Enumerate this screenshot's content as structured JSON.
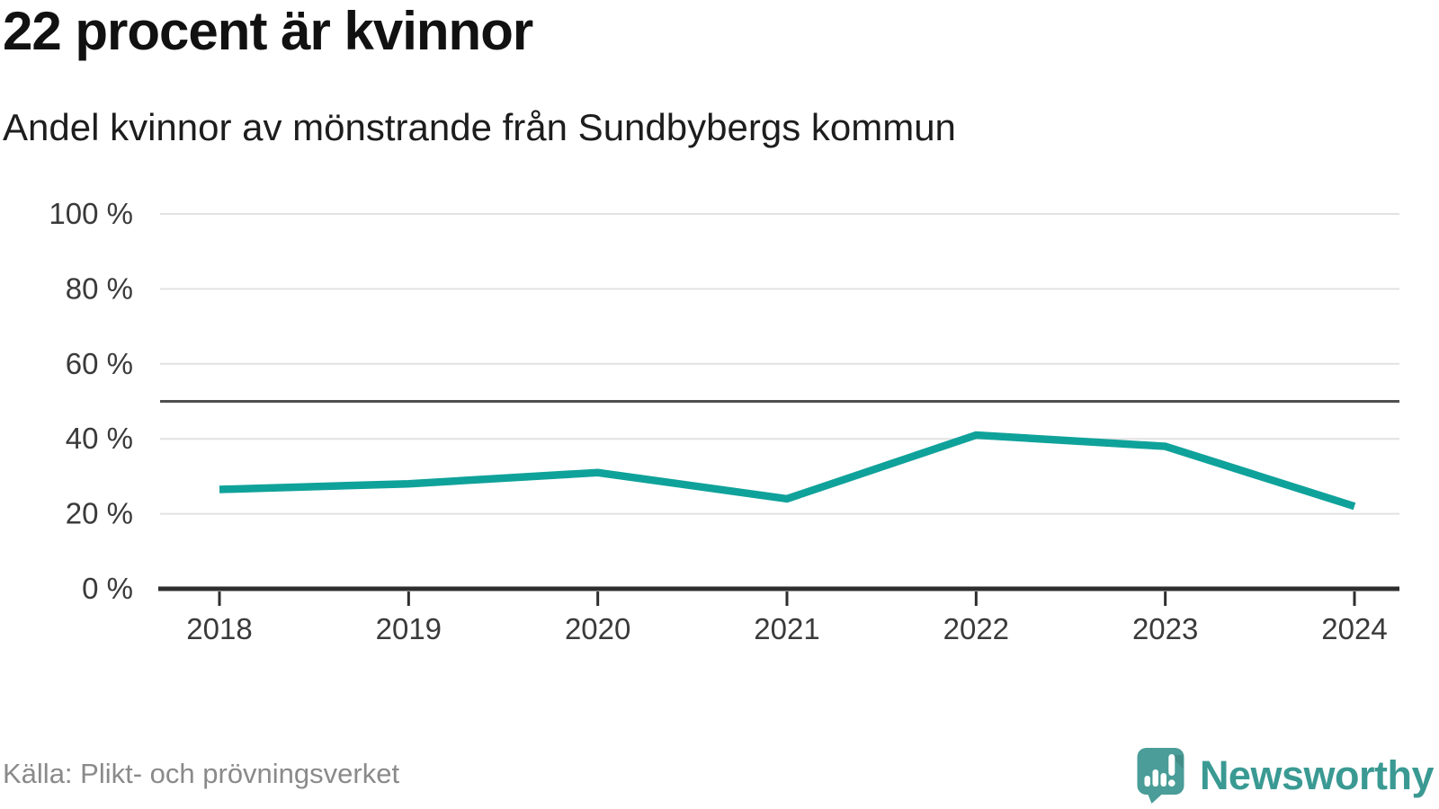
{
  "header": {
    "title": "22 procent är kvinnor",
    "subtitle": "Andel kvinnor av mönstrande från Sundbybergs kommun"
  },
  "chart_data": {
    "type": "line",
    "title": "22 procent är kvinnor",
    "subtitle": "Andel kvinnor av mönstrande från Sundbybergs kommun",
    "categories": [
      "2018",
      "2019",
      "2020",
      "2021",
      "2022",
      "2023",
      "2024"
    ],
    "series": [
      {
        "name": "Andel kvinnor av mönstrande",
        "values": [
          26.5,
          28,
          31,
          24,
          41,
          38,
          22
        ]
      }
    ],
    "unit": "%",
    "ylim": [
      0,
      100
    ],
    "yticks": [
      0,
      20,
      40,
      60,
      80,
      100
    ],
    "ytick_labels": [
      "0 %",
      "20 %",
      "40 %",
      "60 %",
      "80 %",
      "100 %"
    ],
    "reference_line": 50,
    "grid": "horizontal",
    "legend": "none",
    "line_color": "#0fa29a"
  },
  "footer": {
    "source": "Källa: Plikt- och prövningsverket"
  },
  "branding": {
    "wordmark": "Newsworthy",
    "logo_icon": "speech-bubble-bar-chart-icon"
  },
  "colors": {
    "line": "#0fa29a",
    "brand_text": "#3a9a93",
    "brand_icon": "#4a9d98",
    "reference": "#4f4f4f",
    "axis": "#2e2e2e",
    "grid": "#e2e2e2",
    "title_text": "#111111",
    "tick_text": "#3a3a3a",
    "muted_text": "#8a8a8a"
  }
}
